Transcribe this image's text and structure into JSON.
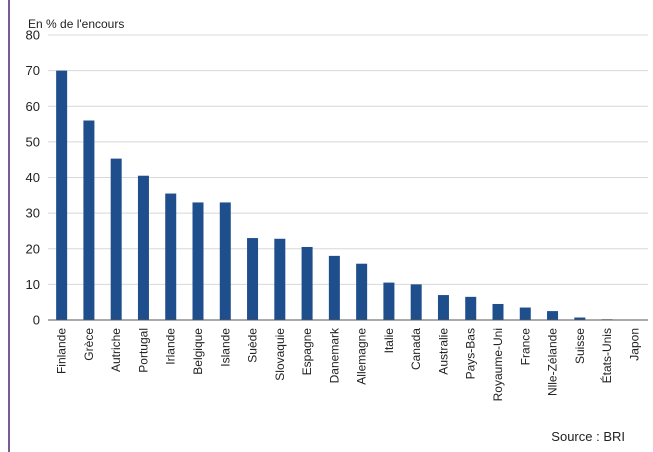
{
  "chart_data": {
    "type": "bar",
    "title": "",
    "ylabel": "En % de l'encours",
    "xlabel": "",
    "ylim": [
      0,
      80
    ],
    "yticks": [
      0,
      10,
      20,
      30,
      40,
      50,
      60,
      70,
      80
    ],
    "grid": true,
    "categories": [
      "Finlande",
      "Grèce",
      "Autriche",
      "Portugal",
      "Irlande",
      "Belgique",
      "Islande",
      "Suède",
      "Slovaquie",
      "Espagne",
      "Danemark",
      "Allemagne",
      "Italie",
      "Canada",
      "Australie",
      "Pays-Bas",
      "Royaume-Uni",
      "France",
      "Nlle-Zélande",
      "Suisse",
      "États-Unis",
      "Japon"
    ],
    "values": [
      70,
      56,
      45.3,
      40.5,
      35.5,
      33,
      33,
      23,
      22.8,
      20.5,
      18,
      15.8,
      10.5,
      10,
      7,
      6.5,
      4.5,
      3.5,
      2.5,
      0.7,
      0.2,
      0
    ],
    "bar_color": "#1f4e8c"
  },
  "source": "Source : BRI"
}
